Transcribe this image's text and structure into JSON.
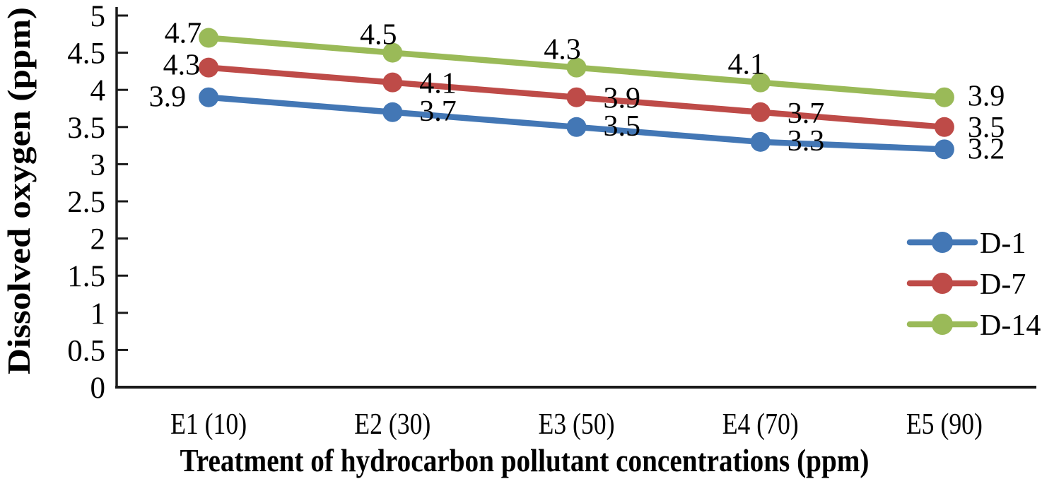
{
  "chart_data": {
    "type": "line",
    "title": "",
    "categories": [
      "E1 (10)",
      "E2 (30)",
      "E3 (50)",
      "E4 (70)",
      "E5 (90)"
    ],
    "series": [
      {
        "name": "D-1",
        "color": "#4377B5",
        "values": [
          3.9,
          3.7,
          3.5,
          3.3,
          3.2
        ]
      },
      {
        "name": "D-7",
        "color": "#BE4B48",
        "values": [
          4.3,
          4.1,
          3.9,
          3.7,
          3.5
        ]
      },
      {
        "name": "D-14",
        "color": "#9ABA58",
        "values": [
          4.7,
          4.5,
          4.3,
          4.1,
          3.9
        ]
      }
    ],
    "xlabel": "Treatment of hydrocarbon pollutant concentrations (ppm)",
    "ylabel": "Dissolved oxygen (ppm)",
    "ylim": [
      0,
      5
    ],
    "ytick_step": 0.5,
    "ytick_labels": [
      "0",
      "0.5",
      "1",
      "1.5",
      "2",
      "2.5",
      "3",
      "3.5",
      "4",
      "4.5",
      "5"
    ],
    "grid": false,
    "data_labels": true,
    "legend_position": "right",
    "legend_entries": [
      "D-1",
      "D-7",
      "D-14"
    ],
    "axis_color": "#1a1a1a",
    "text_color": "#000000",
    "background": "#ffffff"
  }
}
